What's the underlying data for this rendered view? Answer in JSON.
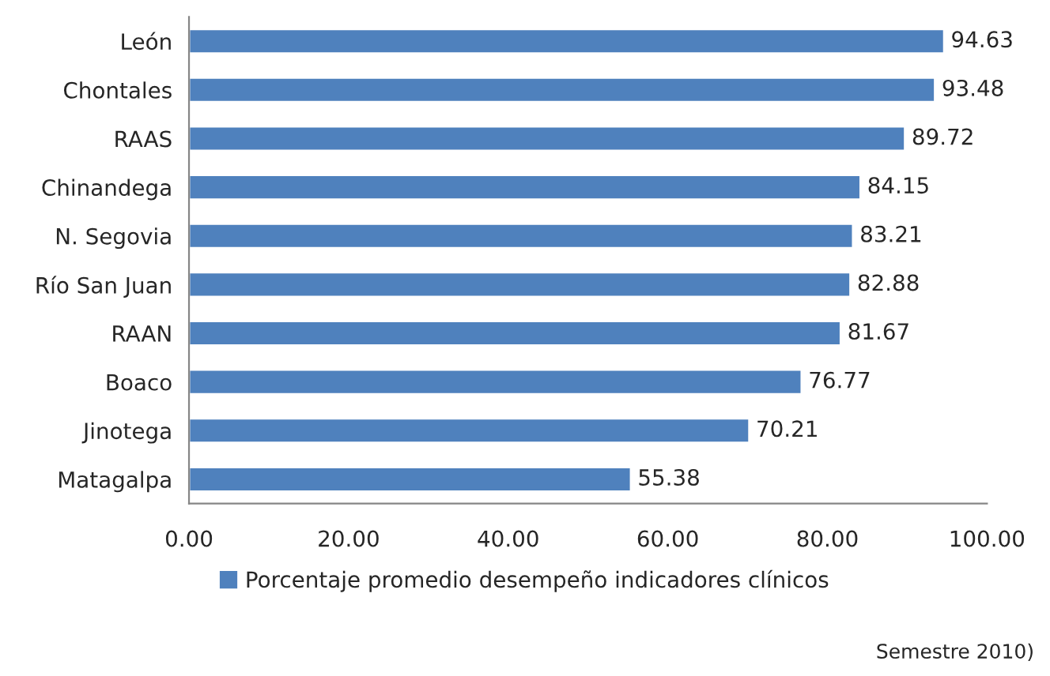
{
  "chart_data": {
    "type": "bar",
    "orientation": "horizontal",
    "categories": [
      "León",
      "Chontales",
      "RAAS",
      "Chinandega",
      "N. Segovia",
      "Río San Juan",
      "RAAN",
      "Boaco",
      "Jinotega",
      "Matagalpa"
    ],
    "series": [
      {
        "name": "Porcentaje promedio desempeño indicadores clínicos",
        "color": "#4f81bd",
        "values": [
          94.63,
          93.48,
          89.72,
          84.15,
          83.21,
          82.88,
          81.67,
          76.77,
          70.21,
          55.38
        ]
      }
    ],
    "xlim": [
      0,
      100
    ],
    "xticks": [
      {
        "value": 0,
        "label": "0.00"
      },
      {
        "value": 20,
        "label": "20.00"
      },
      {
        "value": 40,
        "label": "40.00"
      },
      {
        "value": 60,
        "label": "60.00"
      },
      {
        "value": 80,
        "label": "80.00"
      },
      {
        "value": 100,
        "label": "100.00"
      }
    ],
    "data_labels": true,
    "grid": false,
    "legend": "bottom",
    "annotations": [
      "Semestre 2010)"
    ]
  }
}
